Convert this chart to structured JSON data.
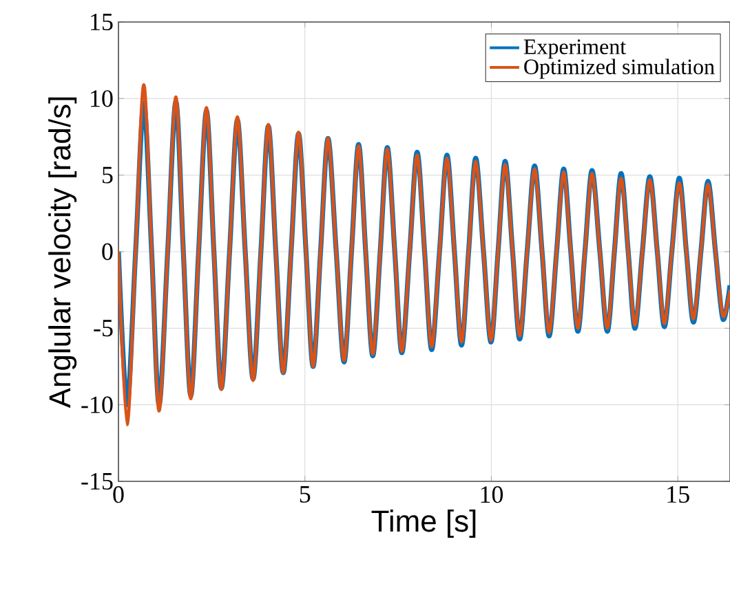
{
  "chart_data": {
    "type": "line",
    "xlabel": "Time [s]",
    "ylabel": "Anglular velocity [rad/s]",
    "xlim": [
      0,
      16.4
    ],
    "ylim": [
      -15,
      15
    ],
    "xticks": [
      0,
      5,
      10,
      15
    ],
    "yticks": [
      -15,
      -10,
      -5,
      0,
      5,
      10,
      15
    ],
    "grid": true,
    "legend": "top right",
    "line_style": "solid",
    "marker": "none",
    "series": [
      {
        "name": "Experiment",
        "color": "#0072bd",
        "x": [
          0,
          0.23,
          0.46,
          0.68,
          0.89,
          1.09,
          1.32,
          1.54,
          1.74,
          1.94,
          2.15,
          2.36,
          2.56,
          2.76,
          2.98,
          3.19,
          3.4,
          3.61,
          3.82,
          4.02,
          4.22,
          4.42,
          4.63,
          4.83,
          5.03,
          5.22,
          5.42,
          5.62,
          5.84,
          6.05,
          6.25,
          6.44,
          6.63,
          6.82,
          7.02,
          7.21,
          7.41,
          7.6,
          7.81,
          8.01,
          8.21,
          8.4,
          8.61,
          8.81,
          9.01,
          9.2,
          9.39,
          9.58,
          9.79,
          9.99,
          10.18,
          10.37,
          10.57,
          10.76,
          10.96,
          11.16,
          11.36,
          11.55,
          11.75,
          11.94,
          12.13,
          12.32,
          12.51,
          12.7,
          12.91,
          13.11,
          13.3,
          13.48,
          13.67,
          13.85,
          14.05,
          14.25,
          14.45,
          14.64,
          14.84,
          15.04,
          15.23,
          15.42,
          15.62,
          15.81,
          16.01,
          16.21,
          16.4
        ],
        "values": [
          0,
          -10.0,
          0,
          9.7,
          0,
          -10.0,
          0,
          9.8,
          0,
          -9.4,
          0,
          9.2,
          0,
          -8.9,
          0,
          8.6,
          0,
          -8.3,
          0,
          8.2,
          0,
          -7.9,
          0,
          7.7,
          0,
          -7.5,
          0,
          7.4,
          0,
          -7.2,
          0,
          7.0,
          0,
          -6.8,
          0,
          6.8,
          0,
          -6.6,
          0,
          6.5,
          0,
          -6.4,
          0,
          6.3,
          0,
          -6.1,
          0,
          6.1,
          0,
          -5.9,
          0,
          5.9,
          0,
          -5.7,
          0,
          5.6,
          0,
          -5.5,
          0,
          5.4,
          0,
          -5.2,
          0,
          5.3,
          0,
          -5.2,
          0,
          5.1,
          0,
          -5.0,
          0,
          4.9,
          0,
          -4.9,
          0,
          4.8,
          0,
          -4.6,
          0,
          4.6,
          0,
          -4.4,
          -2.2
        ]
      },
      {
        "name": "Optimized simulation",
        "color": "#d95319",
        "x": [
          0,
          0.23,
          0.46,
          0.68,
          0.89,
          1.09,
          1.32,
          1.54,
          1.74,
          1.94,
          2.15,
          2.36,
          2.56,
          2.76,
          2.98,
          3.19,
          3.4,
          3.61,
          3.82,
          4.02,
          4.22,
          4.42,
          4.63,
          4.83,
          5.03,
          5.22,
          5.42,
          5.62,
          5.84,
          6.05,
          6.25,
          6.44,
          6.63,
          6.82,
          7.02,
          7.21,
          7.41,
          7.6,
          7.81,
          8.01,
          8.21,
          8.4,
          8.61,
          8.81,
          9.01,
          9.2,
          9.39,
          9.58,
          9.79,
          9.99,
          10.18,
          10.37,
          10.57,
          10.76,
          10.96,
          11.16,
          11.36,
          11.55,
          11.75,
          11.94,
          12.13,
          12.32,
          12.51,
          12.7,
          12.91,
          13.11,
          13.3,
          13.48,
          13.67,
          13.85,
          14.05,
          14.25,
          14.45,
          14.64,
          14.84,
          15.04,
          15.23,
          15.42,
          15.62,
          15.81,
          16.01,
          16.21,
          16.4
        ],
        "values": [
          0,
          -11.3,
          0,
          10.9,
          0,
          -10.4,
          0,
          10.1,
          0,
          -9.6,
          0,
          9.4,
          0,
          -9.0,
          0,
          8.8,
          0,
          -8.4,
          0,
          8.3,
          0,
          -7.9,
          0,
          7.8,
          0,
          -7.5,
          0,
          7.4,
          0,
          -7.1,
          0,
          6.9,
          0,
          -6.7,
          0,
          6.7,
          0,
          -6.5,
          0,
          6.3,
          0,
          -6.2,
          0,
          6.1,
          0,
          -5.9,
          0,
          5.9,
          0,
          -5.8,
          0,
          5.7,
          0,
          -5.5,
          0,
          5.4,
          0,
          -5.3,
          0,
          5.2,
          0,
          -5.0,
          0,
          5.1,
          0,
          -5.0,
          0,
          4.8,
          0,
          -4.8,
          0,
          4.7,
          0,
          -4.7,
          0,
          4.5,
          0,
          -4.4,
          0,
          4.4,
          0,
          -4.2,
          -2.5
        ]
      }
    ]
  }
}
